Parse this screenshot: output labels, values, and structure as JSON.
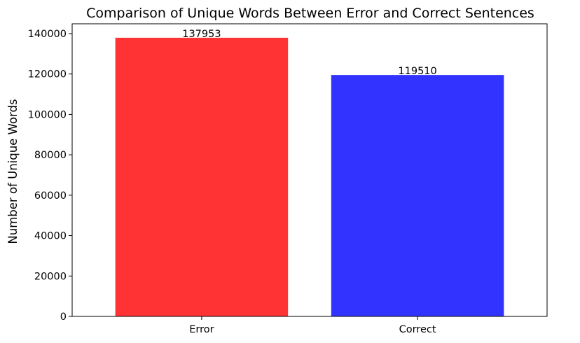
{
  "chart_data": {
    "type": "bar",
    "title": "Comparison of Unique Words Between Error and Correct Sentences",
    "xlabel": "",
    "ylabel": "Number of Unique Words",
    "categories": [
      "Error",
      "Correct"
    ],
    "values": [
      137953,
      119510
    ],
    "data_labels": [
      "137953",
      "119510"
    ],
    "colors": [
      "#ff3333",
      "#3333ff"
    ],
    "ylim": [
      0,
      144850
    ],
    "yticks": [
      0,
      20000,
      40000,
      60000,
      80000,
      100000,
      120000,
      140000
    ],
    "ytick_labels": [
      "0",
      "20000",
      "40000",
      "60000",
      "80000",
      "100000",
      "120000",
      "140000"
    ],
    "grid": false,
    "legend": false
  }
}
